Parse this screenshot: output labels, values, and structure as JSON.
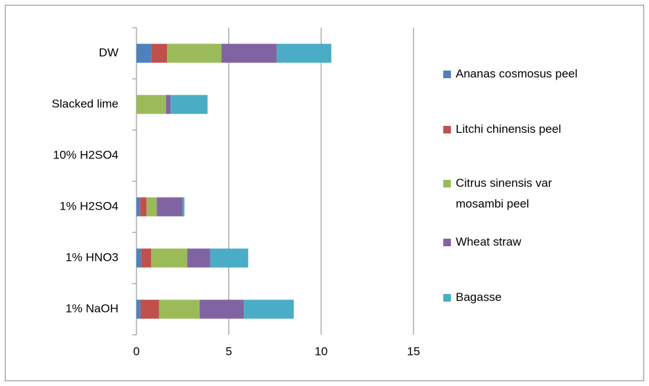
{
  "chart_data": {
    "type": "bar",
    "orientation": "horizontal",
    "stacked": true,
    "categories": [
      "1% NaOH",
      "1% HNO3",
      "1% H2SO4",
      "10% H2SO4",
      "Slacked lime",
      "DW"
    ],
    "series": [
      {
        "name": "Ananas cosmosus peel",
        "color": "#4f81bd",
        "values": [
          0.22,
          0.25,
          0.2,
          0,
          0,
          0.82
        ]
      },
      {
        "name": "Litchi chinensis peel",
        "color": "#c0504d",
        "values": [
          1.0,
          0.55,
          0.35,
          0,
          0,
          0.83
        ]
      },
      {
        "name": "Citrus sinensis var mosambi peel",
        "color": "#9bbb59",
        "values": [
          2.2,
          1.95,
          0.55,
          0,
          1.6,
          2.95
        ]
      },
      {
        "name": "Wheat straw",
        "color": "#8064a2",
        "values": [
          2.4,
          1.25,
          1.4,
          0,
          0.25,
          3.0
        ]
      },
      {
        "name": "Bagasse",
        "color": "#4bacc6",
        "values": [
          2.7,
          2.05,
          0.1,
          0,
          2.0,
          2.95
        ]
      }
    ],
    "xlim": [
      0,
      15
    ],
    "xticks": [
      0,
      5,
      10,
      15
    ],
    "grid": true,
    "legend": "right"
  }
}
